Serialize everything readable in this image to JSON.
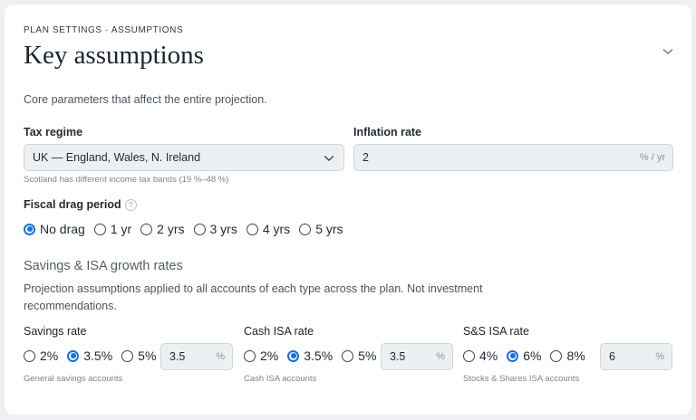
{
  "header": {
    "breadcrumb": "PLAN SETTINGS · ASSUMPTIONS",
    "title": "Key assumptions",
    "description": "Core parameters that affect the entire projection."
  },
  "tax_regime": {
    "label": "Tax regime",
    "value": "UK — England, Wales, N. Ireland",
    "hint": "Scotland has different income tax bands (19 %–48 %)"
  },
  "inflation": {
    "label": "Inflation rate",
    "value": "2",
    "unit": "% / yr"
  },
  "fiscal_drag": {
    "label": "Fiscal drag period",
    "help": "?",
    "options": [
      "No drag",
      "1 yr",
      "2 yrs",
      "3 yrs",
      "4 yrs",
      "5 yrs"
    ],
    "selected": 0
  },
  "growth": {
    "title": "Savings & ISA growth rates",
    "description": "Projection assumptions applied to all accounts of each type across the plan. Not investment recommendations.",
    "groups": [
      {
        "label": "Savings rate",
        "options": [
          "2%",
          "3.5%",
          "5%"
        ],
        "selected": 1,
        "input": "3.5",
        "unit": "%",
        "hint": "General savings accounts"
      },
      {
        "label": "Cash ISA rate",
        "options": [
          "2%",
          "3.5%",
          "5%"
        ],
        "selected": 1,
        "input": "3.5",
        "unit": "%",
        "hint": "Cash ISA accounts"
      },
      {
        "label": "S&S ISA rate",
        "options": [
          "4%",
          "6%",
          "8%"
        ],
        "selected": 1,
        "input": "6",
        "unit": "%",
        "hint": "Stocks & Shares ISA accounts"
      }
    ]
  }
}
